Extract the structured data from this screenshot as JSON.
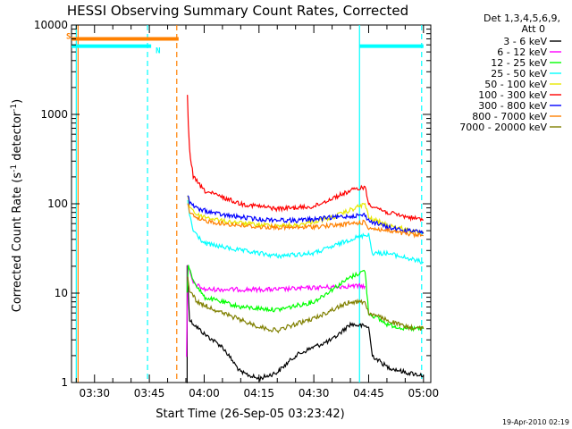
{
  "chart_data": {
    "type": "line",
    "title": "HESSI Observing Summary Count Rates, Corrected",
    "ylabel_main": "Corrected Count Rate (s",
    "ylabel_sup": "-1",
    "ylabel_mid": " detector",
    "ylabel_end": ")",
    "xlabel": "Start Time (26-Sep-05 03:23:42)",
    "x_unit": "minutes",
    "xlim": [
      "03:23:42",
      "05:02:00"
    ],
    "x_ticks": [
      "03:30",
      "03:45",
      "04:00",
      "04:15",
      "04:30",
      "04:45",
      "05:00"
    ],
    "y_scale": "log",
    "ylim": [
      1,
      10000
    ],
    "y_ticks": [
      "1",
      "10",
      "100",
      "1000",
      "10000"
    ],
    "legend": {
      "header_1": "Det 1,3,4,5,6,9,",
      "header_2": "Att 0",
      "placement": "right"
    },
    "footer_stamp": "19-Apr-2010 02:19",
    "flags": [
      {
        "label": "S",
        "color": "#ff8000",
        "value": 7000,
        "x_start": "03:23:42",
        "x_end": "03:53:00"
      },
      {
        "label": "N",
        "color": "#00ffff",
        "value": 5800,
        "x_start": "03:23:42",
        "x_end": "03:45:30"
      },
      {
        "label": "",
        "color": "#00ffff",
        "value": 5800,
        "x_start": "04:42:30",
        "x_end": "05:00:00"
      }
    ],
    "vertical_markers": [
      {
        "time": "03:25:30",
        "color": "#ff8000",
        "style": "solid"
      },
      {
        "time": "03:25:00",
        "color": "#00ffff",
        "style": "solid"
      },
      {
        "time": "03:44:30",
        "color": "#00ffff",
        "style": "dashed"
      },
      {
        "time": "03:52:30",
        "color": "#ff8000",
        "style": "dashed"
      },
      {
        "time": "04:42:30",
        "color": "#00ffff",
        "style": "solid"
      },
      {
        "time": "04:59:30",
        "color": "#00ffff",
        "style": "dashed"
      }
    ],
    "series": [
      {
        "name": "3 - 6 keV",
        "color": "#000000",
        "points": [
          [
            "03:55:20",
            1
          ],
          [
            "03:55:20",
            20
          ],
          [
            "03:56:00",
            5
          ],
          [
            "04:00:00",
            3.5
          ],
          [
            "04:05:00",
            2.5
          ],
          [
            "04:10:00",
            1.3
          ],
          [
            "04:15:00",
            1.1
          ],
          [
            "04:20:00",
            1.3
          ],
          [
            "04:25:00",
            2
          ],
          [
            "04:30:00",
            2.5
          ],
          [
            "04:35:00",
            3
          ],
          [
            "04:40:00",
            4.5
          ],
          [
            "04:45:00",
            4.2
          ],
          [
            "04:46:00",
            2
          ],
          [
            "04:50:00",
            1.5
          ],
          [
            "04:55:00",
            1.3
          ],
          [
            "05:00:00",
            1.2
          ]
        ]
      },
      {
        "name": "6 - 12 keV",
        "color": "#ff00ff",
        "points": [
          [
            "03:55:10",
            2
          ],
          [
            "03:55:30",
            20
          ],
          [
            "03:57:00",
            13
          ],
          [
            "04:00:00",
            11
          ],
          [
            "04:10:00",
            11
          ],
          [
            "04:20:00",
            11
          ],
          [
            "04:30:00",
            11.5
          ],
          [
            "04:40:00",
            12
          ],
          [
            "04:44:00",
            12
          ]
        ]
      },
      {
        "name": "12 - 25 keV",
        "color": "#00ff00",
        "points": [
          [
            "03:55:20",
            10
          ],
          [
            "03:55:40",
            20
          ],
          [
            "03:57:00",
            14
          ],
          [
            "04:00:00",
            9
          ],
          [
            "04:10:00",
            7
          ],
          [
            "04:20:00",
            6.5
          ],
          [
            "04:30:00",
            8
          ],
          [
            "04:35:00",
            11
          ],
          [
            "04:40:00",
            15
          ],
          [
            "04:44:00",
            18
          ],
          [
            "04:45:00",
            6
          ],
          [
            "04:50:00",
            4.5
          ],
          [
            "04:55:00",
            4
          ],
          [
            "05:00:00",
            4
          ]
        ]
      },
      {
        "name": "25 - 50 keV",
        "color": "#00ffff",
        "points": [
          [
            "03:55:30",
            110
          ],
          [
            "03:56:00",
            75
          ],
          [
            "03:57:00",
            50
          ],
          [
            "04:00:00",
            36
          ],
          [
            "04:10:00",
            30
          ],
          [
            "04:20:00",
            26
          ],
          [
            "04:30:00",
            28
          ],
          [
            "04:35:00",
            33
          ],
          [
            "04:40:00",
            40
          ],
          [
            "04:45:00",
            46
          ],
          [
            "04:46:00",
            28
          ],
          [
            "04:50:00",
            28
          ],
          [
            "04:55:00",
            25
          ],
          [
            "05:00:00",
            22
          ]
        ]
      },
      {
        "name": "50 - 100 keV",
        "color": "#e8e800",
        "points": [
          [
            "03:55:30",
            120
          ],
          [
            "03:56:00",
            95
          ],
          [
            "03:58:00",
            75
          ],
          [
            "04:05:00",
            64
          ],
          [
            "04:15:00",
            58
          ],
          [
            "04:25:00",
            57
          ],
          [
            "04:35:00",
            70
          ],
          [
            "04:40:00",
            85
          ],
          [
            "04:44:00",
            100
          ],
          [
            "04:45:00",
            70
          ],
          [
            "04:50:00",
            58
          ],
          [
            "04:55:00",
            52
          ],
          [
            "05:00:00",
            46
          ]
        ]
      },
      {
        "name": "100 - 300 keV",
        "color": "#ff0000",
        "points": [
          [
            "03:55:25",
            1700
          ],
          [
            "03:55:40",
            800
          ],
          [
            "03:56:00",
            400
          ],
          [
            "03:57:00",
            200
          ],
          [
            "04:00:00",
            140
          ],
          [
            "04:10:00",
            100
          ],
          [
            "04:20:00",
            88
          ],
          [
            "04:30:00",
            93
          ],
          [
            "04:35:00",
            115
          ],
          [
            "04:40:00",
            140
          ],
          [
            "04:44:00",
            155
          ],
          [
            "04:45:00",
            100
          ],
          [
            "04:50:00",
            80
          ],
          [
            "04:55:00",
            72
          ],
          [
            "05:00:00",
            66
          ]
        ]
      },
      {
        "name": "300 - 800 keV",
        "color": "#0000ff",
        "points": [
          [
            "03:55:30",
            130
          ],
          [
            "03:56:00",
            105
          ],
          [
            "03:58:00",
            88
          ],
          [
            "04:05:00",
            75
          ],
          [
            "04:15:00",
            67
          ],
          [
            "04:25:00",
            65
          ],
          [
            "04:35:00",
            70
          ],
          [
            "04:40:00",
            73
          ],
          [
            "04:44:00",
            75
          ],
          [
            "04:45:00",
            65
          ],
          [
            "04:50:00",
            55
          ],
          [
            "04:55:00",
            50
          ],
          [
            "05:00:00",
            48
          ]
        ]
      },
      {
        "name": "800 - 7000 keV",
        "color": "#ff8000",
        "points": [
          [
            "03:55:30",
            105
          ],
          [
            "03:56:00",
            80
          ],
          [
            "03:58:00",
            67
          ],
          [
            "04:05:00",
            60
          ],
          [
            "04:15:00",
            55
          ],
          [
            "04:25:00",
            54
          ],
          [
            "04:35:00",
            57
          ],
          [
            "04:40:00",
            60
          ],
          [
            "04:44:00",
            62
          ],
          [
            "04:45:00",
            54
          ],
          [
            "04:50:00",
            50
          ],
          [
            "04:55:00",
            46
          ],
          [
            "05:00:00",
            44
          ]
        ]
      },
      {
        "name": "7000 - 20000 keV",
        "color": "#808000",
        "points": [
          [
            "03:55:30",
            15
          ],
          [
            "03:56:00",
            11
          ],
          [
            "03:58:00",
            8
          ],
          [
            "04:05:00",
            6
          ],
          [
            "04:15:00",
            4.2
          ],
          [
            "04:20:00",
            3.8
          ],
          [
            "04:25:00",
            4.5
          ],
          [
            "04:30:00",
            5.2
          ],
          [
            "04:35:00",
            6.5
          ],
          [
            "04:40:00",
            8
          ],
          [
            "04:44:00",
            8
          ],
          [
            "04:45:00",
            6
          ],
          [
            "04:50:00",
            5
          ],
          [
            "04:55:00",
            4.2
          ],
          [
            "05:00:00",
            4
          ]
        ]
      }
    ]
  }
}
